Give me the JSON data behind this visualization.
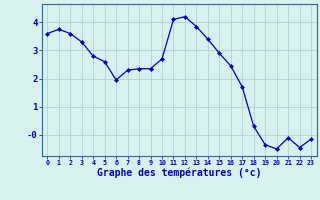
{
  "x": [
    0,
    1,
    2,
    3,
    4,
    5,
    6,
    7,
    8,
    9,
    10,
    11,
    12,
    13,
    14,
    15,
    16,
    17,
    18,
    19,
    20,
    21,
    22,
    23
  ],
  "y": [
    3.6,
    3.75,
    3.6,
    3.3,
    2.8,
    2.6,
    1.95,
    2.3,
    2.35,
    2.35,
    2.7,
    4.1,
    4.2,
    3.85,
    3.4,
    2.9,
    2.45,
    1.7,
    0.3,
    -0.35,
    -0.5,
    -0.1,
    -0.45,
    -0.15
  ],
  "line_color": "#0000cc",
  "marker": "D",
  "marker_size": 2.0,
  "bg_color": "#d8f0ee",
  "grid_color": "#aacccc",
  "xlabel": "Graphe des températures (°c)",
  "xlabel_color": "#0000cc",
  "ytick_vals": [
    0,
    1,
    2,
    3,
    4
  ],
  "ytick_labels": [
    "-0",
    "1",
    "2",
    "3",
    "4"
  ],
  "xtick_labels": [
    "0",
    "1",
    "2",
    "3",
    "4",
    "5",
    "6",
    "7",
    "8",
    "9",
    "10",
    "11",
    "12",
    "13",
    "14",
    "15",
    "16",
    "17",
    "18",
    "19",
    "20",
    "21",
    "22",
    "23"
  ],
  "ylim": [
    -0.75,
    4.65
  ],
  "xlim": [
    -0.5,
    23.5
  ],
  "spine_color": "#336699"
}
